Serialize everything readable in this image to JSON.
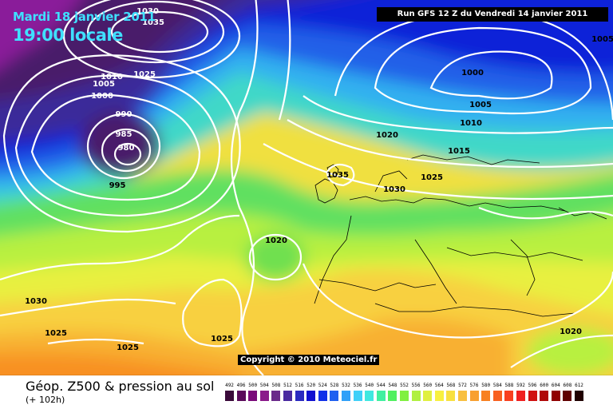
{
  "header": {
    "date": "Mardi 18 janvier 2011",
    "time": "19:00 locale",
    "run": "Run GFS 12 Z du Vendredi 14 janvier 2011"
  },
  "copyright": "Copyright © 2010 Meteociel.fr",
  "footer": {
    "title": "Géop. Z500 & pression au sol",
    "subtitle": "(+ 102h)"
  },
  "legend": {
    "values": [
      "492",
      "496",
      "500",
      "504",
      "508",
      "512",
      "516",
      "520",
      "524",
      "528",
      "532",
      "536",
      "540",
      "544",
      "548",
      "552",
      "556",
      "560",
      "564",
      "568",
      "572",
      "576",
      "580",
      "584",
      "588",
      "592",
      "596",
      "600",
      "604",
      "608",
      "612"
    ],
    "colors": [
      "#3a0a3a",
      "#5a0a5a",
      "#7a0a7a",
      "#8a1a8a",
      "#6a2a8a",
      "#4a2aa0",
      "#2a2ac0",
      "#1010d0",
      "#1030e8",
      "#2060f0",
      "#30a0f8",
      "#40d0f8",
      "#40e8e0",
      "#40f0a0",
      "#50f060",
      "#80f040",
      "#b0f040",
      "#e0f040",
      "#f8f040",
      "#f8e040",
      "#f8c040",
      "#f8a030",
      "#f88020",
      "#f86020",
      "#f84020",
      "#f02020",
      "#d01010",
      "#b00808",
      "#900000",
      "#600000",
      "#200000"
    ]
  },
  "pressure_labels": [
    {
      "text": "1030",
      "kind": "isobar"
    },
    {
      "text": "1035",
      "kind": "isobar"
    },
    {
      "text": "1025",
      "kind": "isobar"
    },
    {
      "text": "1010",
      "kind": "isobar"
    },
    {
      "text": "1005",
      "kind": "isobar"
    },
    {
      "text": "1000",
      "kind": "isobar"
    },
    {
      "text": "990",
      "kind": "isobar"
    },
    {
      "text": "985",
      "kind": "isobar"
    },
    {
      "text": "980",
      "kind": "isobar"
    },
    {
      "text": "995",
      "kind": "isobar"
    },
    {
      "text": "1020",
      "kind": "isobar"
    },
    {
      "text": "1035",
      "kind": "isobar"
    },
    {
      "text": "1030",
      "kind": "isobar"
    },
    {
      "text": "1025",
      "kind": "isobar"
    },
    {
      "text": "1000",
      "kind": "isobar"
    },
    {
      "text": "1005",
      "kind": "isobar"
    },
    {
      "text": "1010",
      "kind": "isobar"
    },
    {
      "text": "1015",
      "kind": "isobar"
    },
    {
      "text": "1020",
      "kind": "isobar"
    },
    {
      "text": "1030",
      "kind": "isobar"
    },
    {
      "text": "1025",
      "kind": "isobar"
    },
    {
      "text": "1025",
      "kind": "isobar"
    },
    {
      "text": "1025",
      "kind": "isobar"
    },
    {
      "text": "1020",
      "kind": "isobar"
    },
    {
      "text": "1005",
      "kind": "isobar"
    }
  ]
}
